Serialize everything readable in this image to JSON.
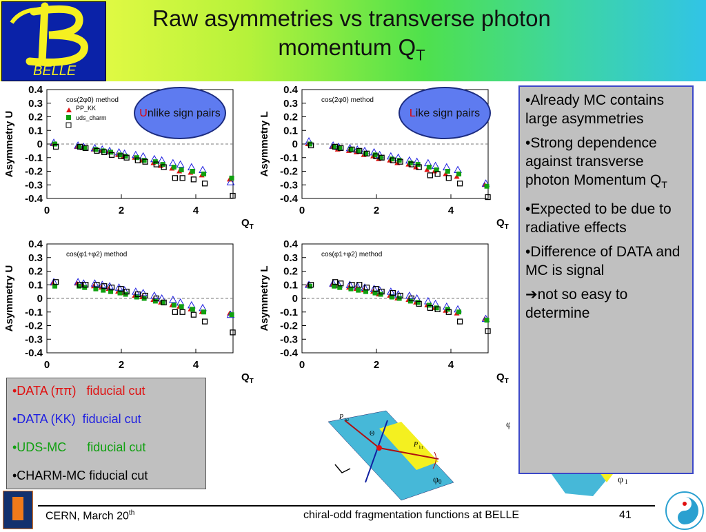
{
  "title": {
    "main": "Raw asymmetries vs transverse photon momentum Q",
    "sub": "T"
  },
  "logo": {
    "letter": "B",
    "text": "BELLE"
  },
  "colors": {
    "data_pipi": "#e01010",
    "data_kk": "#2020e0",
    "uds_mc": "#10a010",
    "charm_mc": "#000000",
    "ellipse_fill": "#5e7bf0",
    "box_border": "#3c48c8"
  },
  "ellipses": [
    {
      "first": "U",
      "rest": "nlike sign pairs"
    },
    {
      "first": "L",
      "rest": "ike sign pairs"
    }
  ],
  "panels": [
    {
      "ylabel": "Asymmetry U",
      "method": "cos(2φ0) method",
      "legend_pp": "PP_KK",
      "legend_uds": "uds_charm",
      "xlabel": "Q",
      "xsub": "T"
    },
    {
      "ylabel": "Asymmetry L",
      "method": "cos(2φ0) method",
      "xlabel": "Q",
      "xsub": "T"
    },
    {
      "ylabel": "Asymmetry U",
      "method": "cos(φ1+φ2) method",
      "xlabel": "Q",
      "xsub": "T"
    },
    {
      "ylabel": "Asymmetry L",
      "method": "cos(φ1+φ2) method",
      "xlabel": "Q",
      "xsub": "T"
    }
  ],
  "axis": {
    "yticks": [
      "0.4",
      "0.3",
      "0.2",
      "0.1",
      "0",
      "-0.1",
      "-0.2",
      "-0.3",
      "-0.4"
    ],
    "xticks": [
      "0",
      "2",
      "4"
    ]
  },
  "chart_data": [
    {
      "type": "scatter",
      "ylim": [
        -0.4,
        0.4
      ],
      "xlim": [
        0,
        5
      ],
      "x": [
        0.2,
        0.85,
        1.0,
        1.3,
        1.5,
        1.7,
        1.95,
        2.1,
        2.4,
        2.6,
        2.9,
        3.1,
        3.4,
        3.6,
        3.9,
        4.2,
        4.95
      ],
      "series": [
        {
          "name": "DATA (ππ)",
          "values": [
            0.0,
            -0.02,
            -0.03,
            -0.04,
            -0.05,
            -0.06,
            -0.08,
            -0.09,
            -0.1,
            -0.12,
            -0.14,
            -0.16,
            -0.18,
            -0.2,
            -0.21,
            -0.23,
            -0.26
          ]
        },
        {
          "name": "DATA (KK)",
          "values": [
            0.01,
            -0.01,
            -0.02,
            -0.03,
            -0.04,
            -0.05,
            -0.06,
            -0.07,
            -0.08,
            -0.09,
            -0.11,
            -0.12,
            -0.14,
            -0.15,
            -0.17,
            -0.19,
            -0.28
          ]
        },
        {
          "name": "UDS-MC",
          "values": [
            0.0,
            -0.02,
            -0.03,
            -0.04,
            -0.05,
            -0.06,
            -0.08,
            -0.09,
            -0.1,
            -0.12,
            -0.13,
            -0.15,
            -0.17,
            -0.19,
            -0.2,
            -0.22,
            -0.25
          ]
        },
        {
          "name": "CHARM-MC",
          "values": [
            -0.02,
            -0.02,
            -0.03,
            -0.05,
            -0.06,
            -0.08,
            -0.09,
            -0.1,
            -0.12,
            -0.13,
            -0.15,
            -0.17,
            -0.25,
            -0.25,
            -0.26,
            -0.29,
            -0.38
          ]
        }
      ]
    },
    {
      "type": "scatter",
      "ylim": [
        -0.4,
        0.4
      ],
      "xlim": [
        0,
        5
      ],
      "x": [
        0.2,
        0.85,
        1.0,
        1.3,
        1.5,
        1.7,
        1.95,
        2.1,
        2.4,
        2.6,
        2.9,
        3.1,
        3.4,
        3.6,
        3.9,
        4.2,
        4.95
      ],
      "series": [
        {
          "name": "DATA (ππ)",
          "values": [
            0.0,
            -0.02,
            -0.04,
            -0.05,
            -0.06,
            -0.08,
            -0.09,
            -0.11,
            -0.12,
            -0.14,
            -0.15,
            -0.17,
            -0.19,
            -0.2,
            -0.22,
            -0.24,
            -0.3
          ]
        },
        {
          "name": "DATA (KK)",
          "values": [
            0.02,
            -0.01,
            -0.02,
            -0.03,
            -0.04,
            -0.05,
            -0.06,
            -0.08,
            -0.09,
            -0.1,
            -0.12,
            -0.13,
            -0.14,
            -0.16,
            -0.17,
            -0.19,
            -0.29
          ]
        },
        {
          "name": "UDS-MC",
          "values": [
            0.0,
            -0.02,
            -0.03,
            -0.04,
            -0.05,
            -0.07,
            -0.08,
            -0.1,
            -0.11,
            -0.12,
            -0.14,
            -0.15,
            -0.17,
            -0.19,
            -0.2,
            -0.22,
            -0.31
          ]
        },
        {
          "name": "CHARM-MC",
          "values": [
            -0.01,
            -0.02,
            -0.03,
            -0.04,
            -0.05,
            -0.07,
            -0.09,
            -0.1,
            -0.12,
            -0.13,
            -0.15,
            -0.17,
            -0.23,
            -0.22,
            -0.25,
            -0.29,
            -0.39
          ]
        }
      ]
    },
    {
      "type": "scatter",
      "ylim": [
        -0.4,
        0.4
      ],
      "xlim": [
        0,
        5
      ],
      "x": [
        0.2,
        0.85,
        1.0,
        1.3,
        1.5,
        1.7,
        1.95,
        2.1,
        2.4,
        2.6,
        2.9,
        3.1,
        3.4,
        3.6,
        3.9,
        4.2,
        4.95
      ],
      "series": [
        {
          "name": "DATA (ππ)",
          "values": [
            0.11,
            0.11,
            0.1,
            0.09,
            0.08,
            0.07,
            0.05,
            0.04,
            0.02,
            0.01,
            -0.01,
            -0.03,
            -0.05,
            -0.06,
            -0.08,
            -0.1,
            -0.11
          ]
        },
        {
          "name": "DATA (KK)",
          "values": [
            0.12,
            0.12,
            0.11,
            0.11,
            0.1,
            0.09,
            0.08,
            0.06,
            0.05,
            0.04,
            0.02,
            0.0,
            -0.01,
            -0.03,
            -0.05,
            -0.07,
            -0.12
          ]
        },
        {
          "name": "UDS-MC",
          "values": [
            0.09,
            0.09,
            0.08,
            0.07,
            0.06,
            0.05,
            0.04,
            0.03,
            0.01,
            0.0,
            -0.02,
            -0.03,
            -0.05,
            -0.06,
            -0.08,
            -0.1,
            -0.12
          ]
        },
        {
          "name": "CHARM-MC",
          "values": [
            0.12,
            0.1,
            0.1,
            0.1,
            0.09,
            0.08,
            0.07,
            0.05,
            0.03,
            0.02,
            0.0,
            -0.03,
            -0.1,
            -0.1,
            -0.12,
            -0.17,
            -0.25
          ]
        }
      ]
    },
    {
      "type": "scatter",
      "ylim": [
        -0.4,
        0.4
      ],
      "xlim": [
        0,
        5
      ],
      "x": [
        0.2,
        0.85,
        1.0,
        1.3,
        1.5,
        1.7,
        1.95,
        2.1,
        2.4,
        2.6,
        2.9,
        3.1,
        3.4,
        3.6,
        3.9,
        4.2,
        4.95
      ],
      "series": [
        {
          "name": "DATA (ππ)",
          "values": [
            0.1,
            0.1,
            0.09,
            0.08,
            0.07,
            0.06,
            0.05,
            0.03,
            0.02,
            0.0,
            -0.01,
            -0.03,
            -0.05,
            -0.07,
            -0.09,
            -0.11,
            -0.15
          ]
        },
        {
          "name": "DATA (KK)",
          "values": [
            0.1,
            0.11,
            0.1,
            0.1,
            0.09,
            0.08,
            0.07,
            0.06,
            0.05,
            0.03,
            0.02,
            0.0,
            -0.02,
            -0.04,
            -0.06,
            -0.08,
            -0.15
          ]
        },
        {
          "name": "UDS-MC",
          "values": [
            0.09,
            0.09,
            0.08,
            0.07,
            0.06,
            0.05,
            0.04,
            0.03,
            0.01,
            0.0,
            -0.02,
            -0.03,
            -0.05,
            -0.07,
            -0.08,
            -0.1,
            -0.16
          ]
        },
        {
          "name": "CHARM-MC",
          "values": [
            0.1,
            0.12,
            0.11,
            0.1,
            0.1,
            0.08,
            0.07,
            0.05,
            0.04,
            0.02,
            0.0,
            -0.04,
            -0.07,
            -0.08,
            -0.1,
            -0.17,
            -0.24
          ]
        }
      ]
    }
  ],
  "bullets": [
    "•Already MC contains large asymmetries",
    "•Strong dependence against transverse photon Momentum Q",
    "•Expected to be due to radiative effects",
    "•Difference of DATA and MC is signal",
    "not so easy to determine"
  ],
  "bullet_sub": "T",
  "legend_box": [
    {
      "label": "•DATA (ππ)   fiducial cut",
      "color": "#e01010"
    },
    {
      "label": "•DATA (KK)  fiducial cut",
      "color": "#2020e0"
    },
    {
      "label": "•UDS-MC      fiducial cut",
      "color": "#10a010"
    },
    {
      "label": "•CHARM-MC fiducial cut",
      "color": "#000000"
    }
  ],
  "diagram": {
    "p_h2": "P",
    "h2": "h2",
    "p_h1": "P",
    "h1": "h1",
    "theta": "Θ",
    "phi0": "φ",
    "phi0_sub": "0",
    "phi1": "φ",
    "phi1_sub": "1",
    "phi2": "φ"
  },
  "footer": {
    "left": "CERN, March 20",
    "left_sup": "th",
    "center": "chiral-odd fragmentation functions at BELLE",
    "page": "41"
  }
}
